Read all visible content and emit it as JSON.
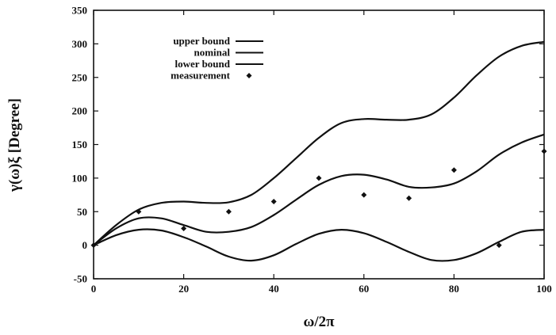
{
  "chart_data": {
    "type": "line",
    "xlabel": "ω/2π",
    "ylabel": "γ(ω)ξ  [Degree]",
    "xlim": [
      0,
      100
    ],
    "ylim": [
      -50,
      350
    ],
    "xticks": [
      0,
      20,
      40,
      60,
      80,
      100
    ],
    "yticks": [
      -50,
      0,
      50,
      100,
      150,
      200,
      250,
      300,
      350
    ],
    "grid": false,
    "legend_position": "top-left",
    "series": [
      {
        "name": "upper bound",
        "style": "line",
        "x": [
          0,
          5,
          10,
          15,
          20,
          25,
          30,
          35,
          40,
          45,
          50,
          55,
          60,
          65,
          70,
          75,
          80,
          85,
          90,
          95,
          100
        ],
        "y": [
          0,
          30,
          53,
          63,
          65,
          63,
          64,
          75,
          100,
          130,
          160,
          182,
          188,
          187,
          187,
          195,
          220,
          253,
          281,
          297,
          303
        ]
      },
      {
        "name": "nominal",
        "style": "line",
        "x": [
          0,
          5,
          10,
          15,
          20,
          25,
          30,
          35,
          40,
          45,
          50,
          55,
          60,
          65,
          70,
          75,
          80,
          85,
          90,
          95,
          100
        ],
        "y": [
          0,
          25,
          40,
          40,
          30,
          20,
          20,
          27,
          45,
          68,
          90,
          103,
          105,
          98,
          87,
          86,
          92,
          110,
          135,
          153,
          165
        ]
      },
      {
        "name": "lower bound",
        "style": "line",
        "x": [
          0,
          5,
          10,
          15,
          20,
          25,
          30,
          35,
          40,
          45,
          50,
          55,
          60,
          65,
          70,
          75,
          80,
          85,
          90,
          95,
          100
        ],
        "y": [
          0,
          15,
          23,
          22,
          12,
          -2,
          -17,
          -23,
          -15,
          2,
          17,
          23,
          18,
          5,
          -10,
          -22,
          -22,
          -12,
          5,
          20,
          23
        ]
      },
      {
        "name": "measurement",
        "style": "marker",
        "x": [
          0,
          10,
          20,
          30,
          40,
          50,
          60,
          70,
          80,
          90,
          100
        ],
        "y": [
          0,
          50,
          25,
          50,
          65,
          100,
          75,
          70,
          112,
          0,
          140
        ]
      }
    ]
  }
}
